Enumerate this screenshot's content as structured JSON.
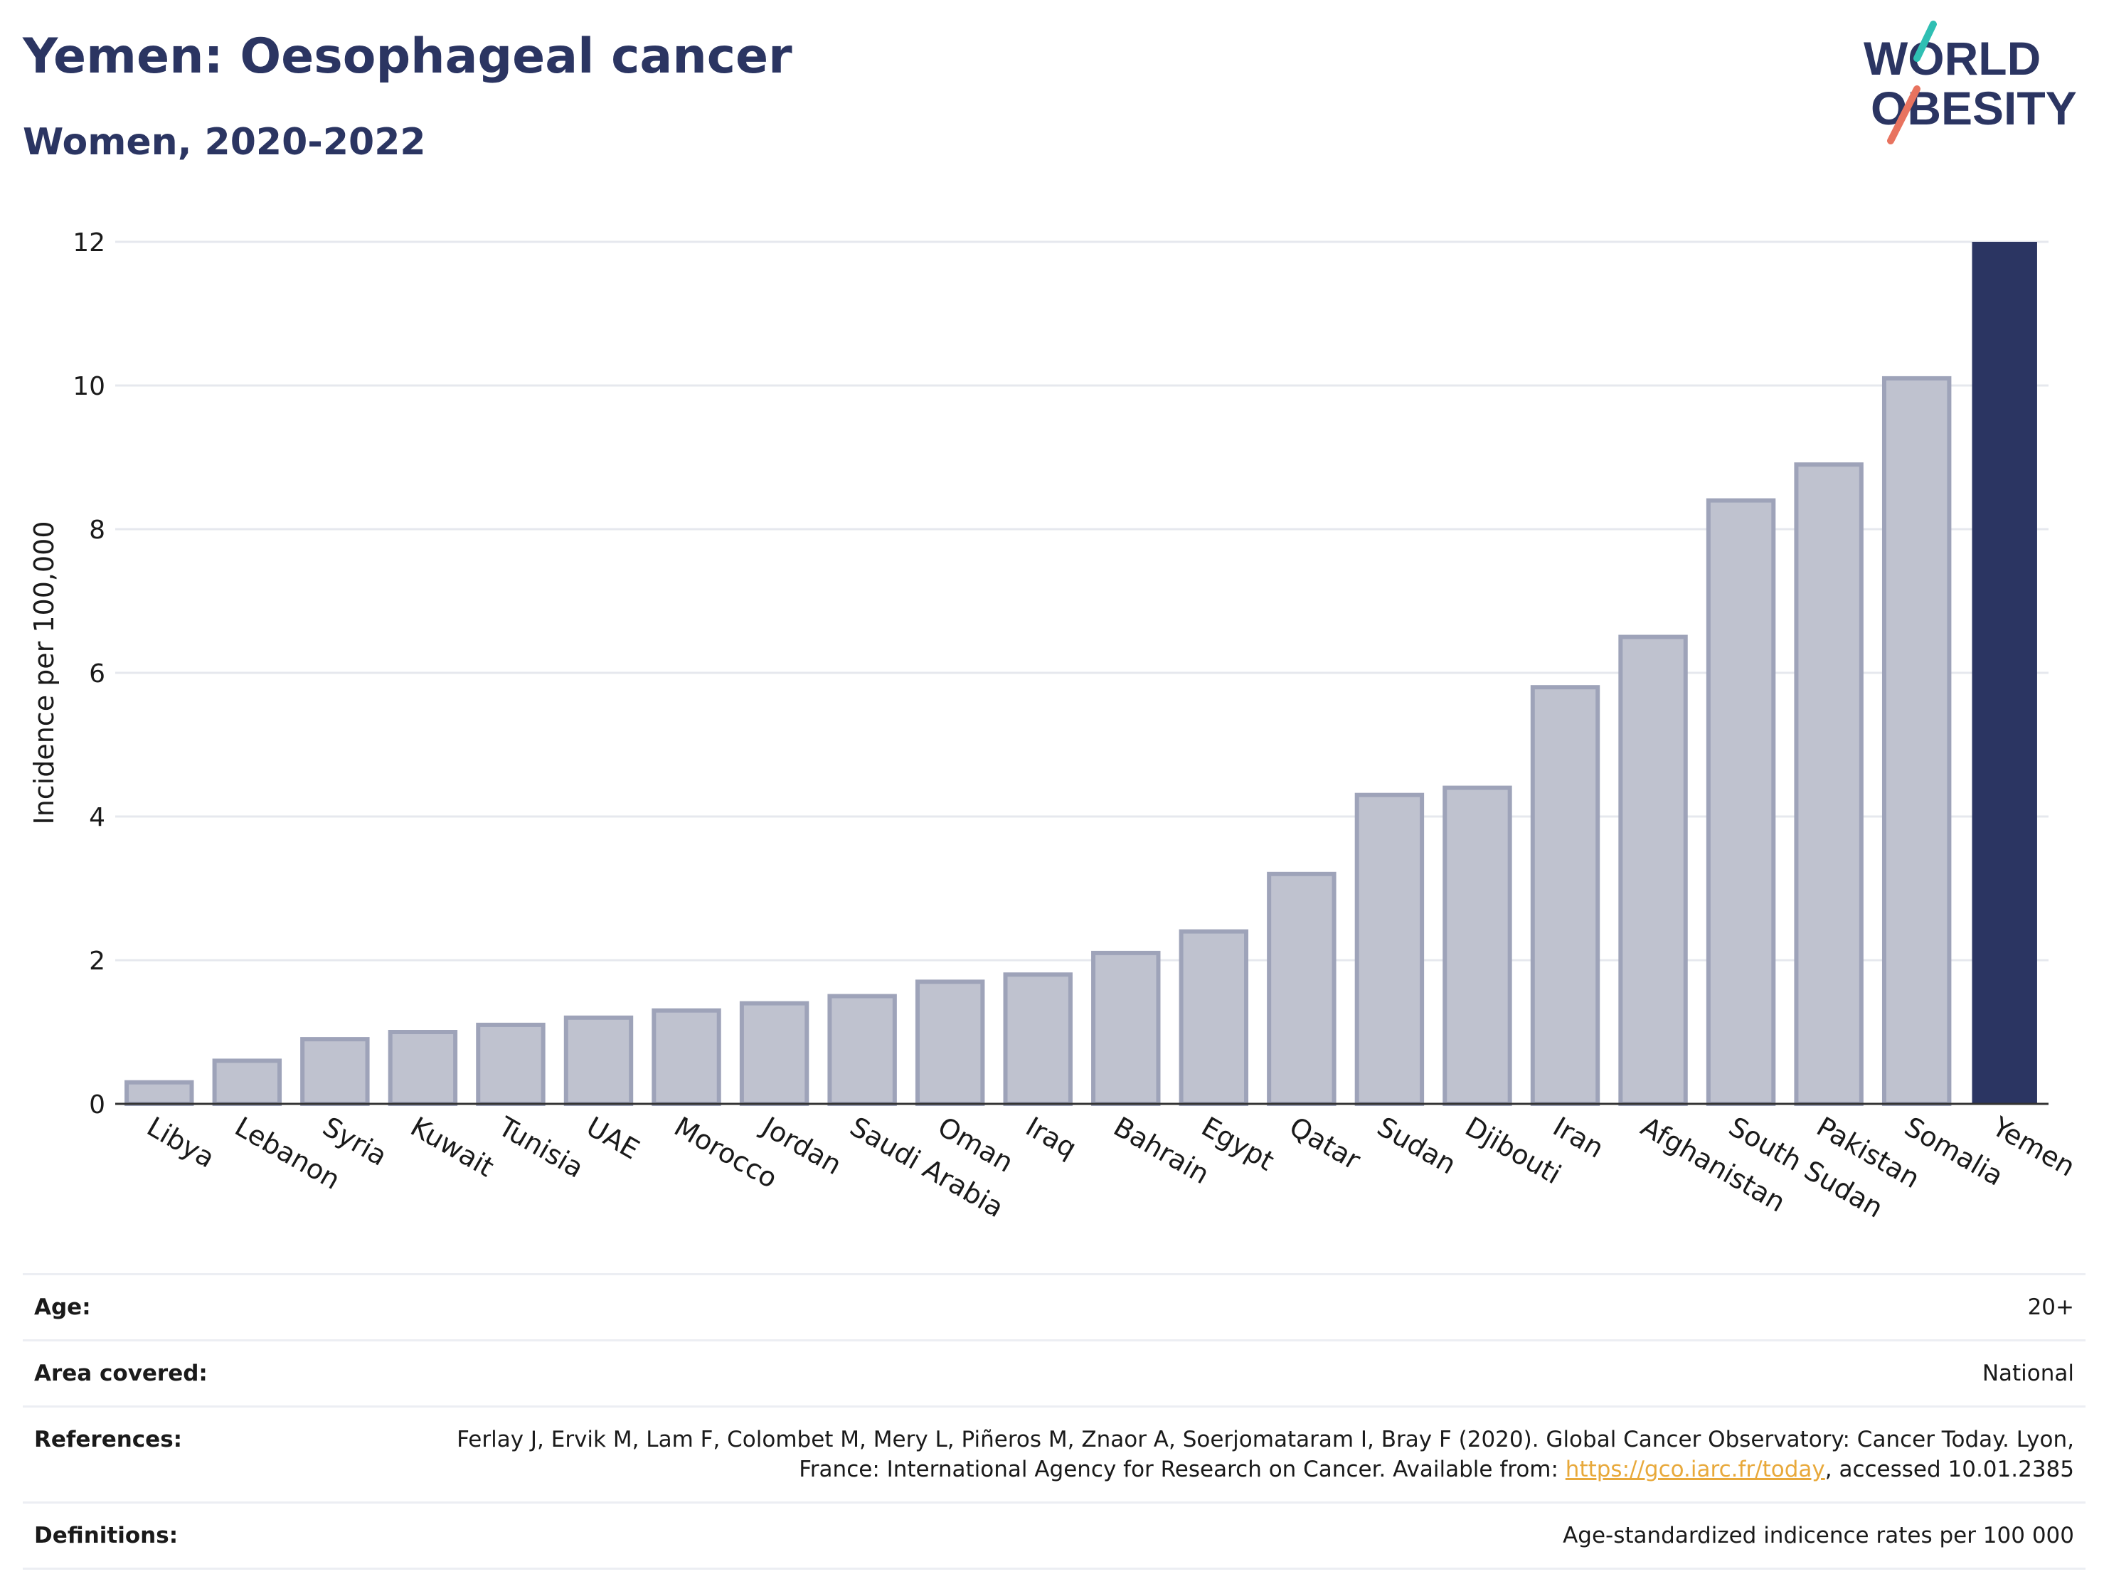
{
  "header": {
    "title": "Yemen: Oesophageal cancer",
    "subtitle": "Women, 2020-2022"
  },
  "logo": {
    "line1": "WORLD",
    "line2": "OBESITY",
    "slash_top_color": "#2fbfb3",
    "slash_bottom_color": "#e8735f",
    "text_color": "#2b3562"
  },
  "chart_data": {
    "type": "bar",
    "title": "Yemen: Oesophageal cancer",
    "subtitle": "Women, 2020-2022",
    "xlabel": "",
    "ylabel": "Incidence per 100,000",
    "ylim": [
      0,
      12
    ],
    "yticks": [
      0,
      2,
      4,
      6,
      8,
      10,
      12
    ],
    "grid": true,
    "categories": [
      "Libya",
      "Lebanon",
      "Syria",
      "Kuwait",
      "Tunisia",
      "UAE",
      "Morocco",
      "Jordan",
      "Saudi Arabia",
      "Oman",
      "Iraq",
      "Bahrain",
      "Egypt",
      "Qatar",
      "Sudan",
      "Djibouti",
      "Iran",
      "Afghanistan",
      "South Sudan",
      "Pakistan",
      "Somalia",
      "Yemen"
    ],
    "values": [
      0.3,
      0.6,
      0.9,
      1.0,
      1.1,
      1.2,
      1.3,
      1.4,
      1.5,
      1.7,
      1.8,
      2.1,
      2.4,
      3.2,
      4.3,
      4.4,
      5.8,
      6.5,
      8.4,
      8.9,
      10.1,
      12.0
    ],
    "highlight": "Yemen",
    "colors": {
      "bar_fill": "#bfc2cf",
      "bar_stroke": "#9ea3b9",
      "highlight_fill": "#2b3562",
      "grid": "#e6e8ee",
      "axis": "#333333"
    }
  },
  "meta": {
    "rows": [
      {
        "label": "Age:",
        "value": "20+"
      },
      {
        "label": "Area covered:",
        "value": "National"
      },
      {
        "label": "References:",
        "value_pre": "Ferlay J, Ervik M, Lam F, Colombet M, Mery L, Piñeros M, Znaor A, Soerjomataram I, Bray F (2020). Global Cancer Observatory: Cancer Today. Lyon, France: International Agency for Research on Cancer. Available from: ",
        "link": "https://gco.iarc.fr/today",
        "value_post": ", accessed 10.01.2385"
      },
      {
        "label": "Definitions:",
        "value": "Age-standardized indicence rates per 100 000"
      }
    ]
  }
}
